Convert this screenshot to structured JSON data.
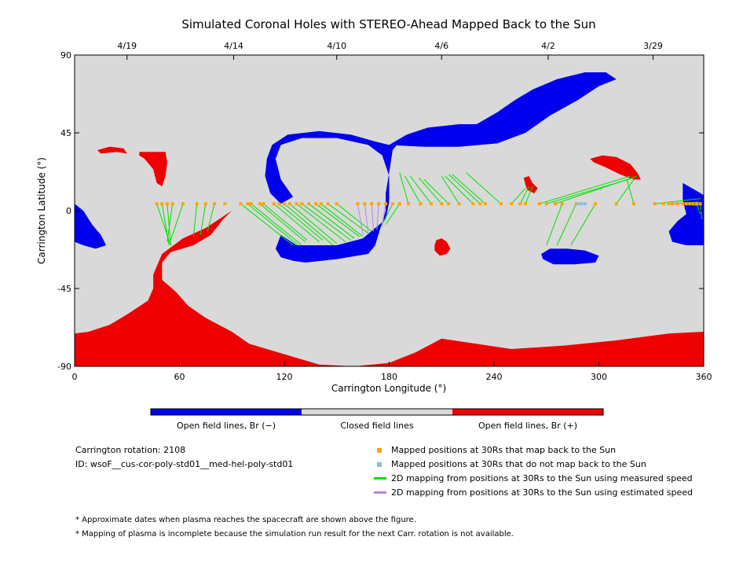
{
  "chart_data": {
    "type": "map",
    "title": "Simulated Coronal Holes with STEREO-Ahead Mapped Back to the Sun",
    "xlabel": "Carrington Longitude (°)",
    "ylabel": "Carrington Latitude (°)",
    "xlim": [
      0,
      360
    ],
    "ylim": [
      -90,
      90
    ],
    "x_ticks": [
      "0",
      "60",
      "120",
      "180",
      "240",
      "300",
      "360"
    ],
    "y_ticks": [
      "90",
      "45",
      "0",
      "-45",
      "-90"
    ],
    "x_tick_values": [
      0,
      60,
      120,
      180,
      240,
      300,
      360
    ],
    "y_tick_values": [
      90,
      45,
      0,
      -45,
      -90
    ],
    "top_axis_dates": [
      {
        "label": "4/19",
        "lon": 30
      },
      {
        "label": "4/14",
        "lon": 91
      },
      {
        "label": "4/10",
        "lon": 150
      },
      {
        "label": "4/6",
        "lon": 210
      },
      {
        "label": "4/2",
        "lon": 271
      },
      {
        "label": "3/29",
        "lon": 331
      }
    ],
    "colors": {
      "open_negative": "#0000ee",
      "closed": "#d9d9d9",
      "open_positive": "#ee0000",
      "mapped_point": "#ffa500",
      "unmapped_point": "#87bde8",
      "measured_line": "#00e000",
      "estimated_line": "#b585e8"
    },
    "colorbar_labels": [
      "Open field lines, Br (−)",
      "Closed field lines",
      "Open field lines, Br (+)"
    ],
    "regions": [
      {
        "name": "south polar positive",
        "polarity": "+",
        "polygon": [
          [
            0,
            -90
          ],
          [
            360,
            -90
          ],
          [
            360,
            -70
          ],
          [
            340,
            -71
          ],
          [
            310,
            -75
          ],
          [
            280,
            -78
          ],
          [
            250,
            -80
          ],
          [
            230,
            -77
          ],
          [
            210,
            -74
          ],
          [
            195,
            -82
          ],
          [
            180,
            -88
          ],
          [
            160,
            -90
          ],
          [
            140,
            -89
          ],
          [
            120,
            -83
          ],
          [
            100,
            -77
          ],
          [
            90,
            -70
          ],
          [
            75,
            -62
          ],
          [
            65,
            -55
          ],
          [
            58,
            -47
          ],
          [
            50,
            -40
          ],
          [
            50,
            -30
          ],
          [
            55,
            -24
          ],
          [
            68,
            -20
          ],
          [
            78,
            -14
          ],
          [
            85,
            -5
          ],
          [
            90,
            0
          ],
          [
            75,
            -10
          ],
          [
            62,
            -16
          ],
          [
            50,
            -25
          ],
          [
            45,
            -37
          ],
          [
            45,
            -45
          ],
          [
            42,
            -52
          ],
          [
            30,
            -60
          ],
          [
            20,
            -66
          ],
          [
            8,
            -70
          ],
          [
            0,
            -71
          ]
        ]
      },
      {
        "name": "central negative ring",
        "polarity": "-",
        "polygon": [
          [
            110,
            30
          ],
          [
            113,
            38
          ],
          [
            122,
            44
          ],
          [
            140,
            46
          ],
          [
            158,
            44
          ],
          [
            172,
            40
          ],
          [
            180,
            38
          ],
          [
            200,
            37
          ],
          [
            220,
            37
          ],
          [
            242,
            39
          ],
          [
            258,
            45
          ],
          [
            272,
            55
          ],
          [
            288,
            64
          ],
          [
            300,
            72
          ],
          [
            310,
            76
          ],
          [
            304,
            80
          ],
          [
            292,
            80
          ],
          [
            276,
            76
          ],
          [
            262,
            70
          ],
          [
            252,
            64
          ],
          [
            242,
            57
          ],
          [
            230,
            50
          ],
          [
            222,
            47
          ],
          [
            208,
            46
          ],
          [
            198,
            43
          ],
          [
            186,
            40
          ],
          [
            182,
            35
          ],
          [
            180,
            22
          ],
          [
            178,
            10
          ],
          [
            178,
            0
          ],
          [
            175,
            -10
          ],
          [
            172,
            -20
          ],
          [
            168,
            -25
          ],
          [
            150,
            -28
          ],
          [
            132,
            -30
          ],
          [
            125,
            -29
          ],
          [
            118,
            -27
          ],
          [
            115,
            -22
          ],
          [
            118,
            -14
          ],
          [
            127,
            -20
          ],
          [
            150,
            -20
          ],
          [
            165,
            -16
          ],
          [
            172,
            -10
          ],
          [
            178,
            -5
          ],
          [
            180,
            5
          ],
          [
            180,
            20
          ],
          [
            176,
            32
          ],
          [
            168,
            38
          ],
          [
            150,
            42
          ],
          [
            130,
            42
          ],
          [
            118,
            38
          ],
          [
            115,
            30
          ],
          [
            118,
            18
          ],
          [
            125,
            8
          ],
          [
            118,
            4
          ],
          [
            112,
            10
          ],
          [
            109,
            20
          ]
        ]
      },
      {
        "name": "upper-right negative lobe",
        "polarity": "-",
        "polygon": [
          [
            180,
            38
          ],
          [
            200,
            37
          ],
          [
            220,
            37
          ],
          [
            242,
            39
          ],
          [
            256,
            45
          ],
          [
            238,
            50
          ],
          [
            220,
            50
          ],
          [
            202,
            48
          ],
          [
            190,
            44
          ]
        ]
      },
      {
        "name": "lower-right negative",
        "polarity": "-",
        "polygon": [
          [
            272,
            -22
          ],
          [
            282,
            -22
          ],
          [
            292,
            -23
          ],
          [
            300,
            -26
          ],
          [
            298,
            -30
          ],
          [
            286,
            -31
          ],
          [
            274,
            -31
          ],
          [
            268,
            -28
          ],
          [
            267,
            -25
          ]
        ]
      },
      {
        "name": "left edge negative",
        "polarity": "-",
        "polygon": [
          [
            0,
            4
          ],
          [
            5,
            0
          ],
          [
            10,
            -8
          ],
          [
            15,
            -14
          ],
          [
            18,
            -20
          ],
          [
            12,
            -22
          ],
          [
            5,
            -20
          ],
          [
            0,
            -18
          ]
        ]
      },
      {
        "name": "right edge negative",
        "polarity": "-",
        "polygon": [
          [
            348,
            16
          ],
          [
            355,
            12
          ],
          [
            360,
            9
          ],
          [
            360,
            -20
          ],
          [
            350,
            -20
          ],
          [
            342,
            -18
          ],
          [
            340,
            -12
          ],
          [
            345,
            -6
          ],
          [
            350,
            -2
          ],
          [
            348,
            6
          ]
        ]
      },
      {
        "name": "upper-left positive",
        "polarity": "+",
        "polygon": [
          [
            13,
            35
          ],
          [
            20,
            37
          ],
          [
            28,
            36
          ],
          [
            30,
            33
          ],
          [
            24,
            34
          ],
          [
            15,
            33
          ]
        ]
      },
      {
        "name": "upper-left positive 2",
        "polarity": "+",
        "polygon": [
          [
            37,
            34
          ],
          [
            47,
            34
          ],
          [
            52,
            34
          ],
          [
            53,
            28
          ],
          [
            52,
            20
          ],
          [
            50,
            14
          ],
          [
            47,
            16
          ],
          [
            45,
            24
          ],
          [
            40,
            30
          ],
          [
            37,
            32
          ]
        ]
      },
      {
        "name": "upper-right positive",
        "polarity": "+",
        "polygon": [
          [
            295,
            30
          ],
          [
            302,
            32
          ],
          [
            310,
            31
          ],
          [
            318,
            27
          ],
          [
            322,
            22
          ],
          [
            324,
            18
          ],
          [
            320,
            18
          ],
          [
            312,
            21
          ],
          [
            304,
            25
          ],
          [
            297,
            28
          ]
        ]
      },
      {
        "name": "small positive",
        "polarity": "+",
        "polygon": [
          [
            257,
            19
          ],
          [
            260,
            20
          ],
          [
            262,
            16
          ],
          [
            265,
            13
          ],
          [
            263,
            10
          ],
          [
            259,
            12
          ],
          [
            258,
            15
          ]
        ]
      },
      {
        "name": "small positive 2",
        "polarity": "+",
        "polygon": [
          [
            207,
            -17
          ],
          [
            210,
            -16
          ],
          [
            213,
            -18
          ],
          [
            215,
            -22
          ],
          [
            213,
            -25
          ],
          [
            209,
            -26
          ],
          [
            206,
            -23
          ],
          [
            206,
            -20
          ]
        ]
      }
    ],
    "mapped_positions_30Rs": [
      47,
      50,
      53,
      56,
      62,
      70,
      75,
      80,
      86,
      95,
      99,
      101,
      106,
      108,
      114,
      117,
      120,
      123,
      127,
      130,
      134,
      138,
      141,
      145,
      150,
      162,
      166,
      170,
      174,
      178,
      182,
      186,
      191,
      198,
      204,
      210,
      214,
      220,
      228,
      232,
      235,
      244,
      250,
      255,
      258,
      266,
      270,
      275,
      279,
      287,
      298,
      310,
      320,
      332,
      337,
      340,
      342,
      345,
      348,
      350,
      352,
      354,
      356,
      358
    ],
    "unmapped_positions_30Rs": [
      288,
      290,
      292
    ],
    "measured_mappings": [
      {
        "from": 47,
        "to": [
          55,
          -20
        ]
      },
      {
        "from": 50,
        "to": [
          54,
          -20
        ]
      },
      {
        "from": 53,
        "to": [
          55,
          -20
        ]
      },
      {
        "from": 56,
        "to": [
          53,
          -18
        ]
      },
      {
        "from": 62,
        "to": [
          55,
          -17
        ]
      },
      {
        "from": 70,
        "to": [
          68,
          -15
        ]
      },
      {
        "from": 75,
        "to": [
          72,
          -14
        ]
      },
      {
        "from": 80,
        "to": [
          76,
          -12
        ]
      },
      {
        "from": 95,
        "to": [
          125,
          -20
        ]
      },
      {
        "from": 99,
        "to": [
          128,
          -20
        ]
      },
      {
        "from": 101,
        "to": [
          130,
          -20
        ]
      },
      {
        "from": 106,
        "to": [
          132,
          -18
        ]
      },
      {
        "from": 108,
        "to": [
          133,
          -17
        ]
      },
      {
        "from": 114,
        "to": [
          140,
          -18
        ]
      },
      {
        "from": 117,
        "to": [
          142,
          -17
        ]
      },
      {
        "from": 120,
        "to": [
          148,
          -20
        ]
      },
      {
        "from": 123,
        "to": [
          150,
          -19
        ]
      },
      {
        "from": 127,
        "to": [
          155,
          -18
        ]
      },
      {
        "from": 130,
        "to": [
          158,
          -17
        ]
      },
      {
        "from": 134,
        "to": [
          160,
          -16
        ]
      },
      {
        "from": 138,
        "to": [
          163,
          -15
        ]
      },
      {
        "from": 141,
        "to": [
          165,
          -15
        ]
      },
      {
        "from": 145,
        "to": [
          168,
          -13
        ]
      },
      {
        "from": 150,
        "to": [
          170,
          -12
        ]
      },
      {
        "from": 182,
        "to": [
          175,
          -10
        ]
      },
      {
        "from": 186,
        "to": [
          178,
          -8
        ]
      },
      {
        "from": 191,
        "to": [
          186,
          22
        ]
      },
      {
        "from": 198,
        "to": [
          189,
          20
        ]
      },
      {
        "from": 204,
        "to": [
          192,
          20
        ]
      },
      {
        "from": 210,
        "to": [
          197,
          19
        ]
      },
      {
        "from": 214,
        "to": [
          200,
          18
        ]
      },
      {
        "from": 220,
        "to": [
          210,
          20
        ]
      },
      {
        "from": 228,
        "to": [
          212,
          20
        ]
      },
      {
        "from": 232,
        "to": [
          214,
          21
        ]
      },
      {
        "from": 235,
        "to": [
          216,
          21
        ]
      },
      {
        "from": 244,
        "to": [
          224,
          22
        ]
      },
      {
        "from": 250,
        "to": [
          258,
          13
        ]
      },
      {
        "from": 255,
        "to": [
          260,
          14
        ]
      },
      {
        "from": 258,
        "to": [
          262,
          14
        ]
      },
      {
        "from": 266,
        "to": [
          318,
          20
        ]
      },
      {
        "from": 270,
        "to": [
          320,
          19
        ]
      },
      {
        "from": 275,
        "to": [
          322,
          20
        ]
      },
      {
        "from": 279,
        "to": [
          270,
          -20
        ]
      },
      {
        "from": 287,
        "to": [
          276,
          -20
        ]
      },
      {
        "from": 298,
        "to": [
          284,
          -20
        ]
      },
      {
        "from": 310,
        "to": [
          320,
          18
        ]
      },
      {
        "from": 320,
        "to": [
          316,
          18
        ]
      },
      {
        "from": 332,
        "to": [
          358,
          7
        ]
      },
      {
        "from": 340,
        "to": [
          357,
          5
        ]
      },
      {
        "from": 350,
        "to": [
          356,
          3
        ]
      },
      {
        "from": 356,
        "to": [
          358,
          -2
        ]
      },
      {
        "from": 358,
        "to": [
          359,
          -5
        ]
      }
    ],
    "estimated_mappings": [
      {
        "from": 162,
        "to": [
          165,
          -14
        ]
      },
      {
        "from": 166,
        "to": [
          168,
          -13
        ]
      },
      {
        "from": 170,
        "to": [
          171,
          -12
        ]
      },
      {
        "from": 174,
        "to": [
          173,
          -11
        ]
      },
      {
        "from": 178,
        "to": [
          176,
          -9
        ]
      }
    ],
    "legend": [
      {
        "kind": "mapped",
        "label": "Mapped positions at 30Rs that map back to the Sun"
      },
      {
        "kind": "unmapped",
        "label": "Mapped positions at 30Rs that do not map back to the Sun"
      },
      {
        "kind": "measured",
        "label": "2D mapping from positions at 30Rs to the Sun using measured speed"
      },
      {
        "kind": "estimated",
        "label": "2D mapping from positions at 30Rs to the Sun using estimated speed"
      }
    ]
  },
  "info": {
    "carrington_rotation": "Carrington rotation: 2108",
    "run_id": "ID: wsoF__cus-cor-poly-std01__med-hel-poly-std01"
  },
  "footnotes": [
    "* Approximate dates when plasma reaches the spacecraft are shown above the figure.",
    "* Mapping of plasma is incomplete because the simulation run result for the next Carr. rotation is not available."
  ]
}
